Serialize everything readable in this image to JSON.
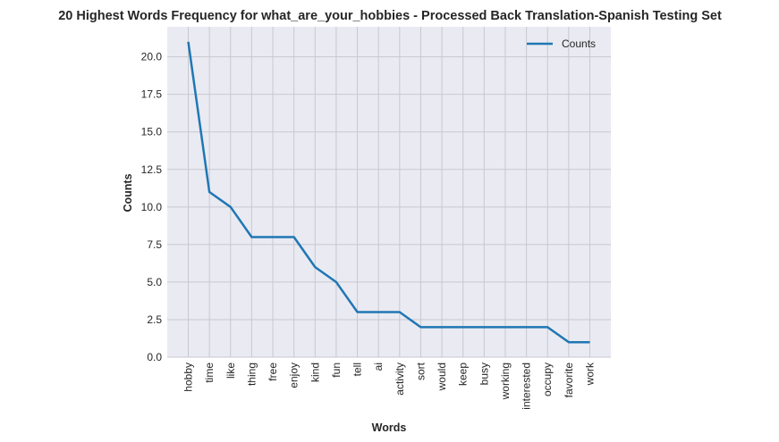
{
  "chart_data": {
    "type": "line",
    "title": "20 Highest Words Frequency for what_are_your_hobbies - Processed Back Translation-Spanish Testing Set",
    "xlabel": "Words",
    "ylabel": "Counts",
    "categories": [
      "hobby",
      "time",
      "like",
      "thing",
      "free",
      "enjoy",
      "kind",
      "fun",
      "tell",
      "ai",
      "activity",
      "sort",
      "would",
      "keep",
      "busy",
      "working",
      "interested",
      "occupy",
      "favorite",
      "work"
    ],
    "series": [
      {
        "name": "Counts",
        "values": [
          21,
          11,
          10,
          8,
          8,
          8,
          6,
          5,
          3,
          3,
          3,
          2,
          2,
          2,
          2,
          2,
          2,
          2,
          1,
          1
        ]
      }
    ],
    "ylim": [
      0,
      22
    ],
    "yticks": [
      "0.0",
      "2.5",
      "5.0",
      "7.5",
      "10.0",
      "12.5",
      "15.0",
      "17.5",
      "20.0"
    ],
    "grid": true,
    "legend": "top-right",
    "colors": {
      "line": "#1f77b4",
      "background": "#eaeaf2",
      "grid": "#c8c8d0"
    }
  }
}
